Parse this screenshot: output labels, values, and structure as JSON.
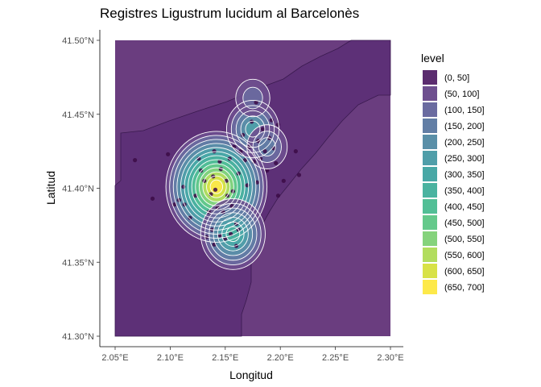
{
  "chart_data": {
    "type": "heatmap",
    "title": "Registres Ligustrum lucidum al Barcelonès",
    "xlabel": "Longitud",
    "ylabel": "Latitud",
    "xlim": [
      2.05,
      2.3
    ],
    "ylim": [
      41.3,
      41.5
    ],
    "x_ticks": [
      {
        "value": 2.05,
        "label": "2.05°E"
      },
      {
        "value": 2.1,
        "label": "2.10°E"
      },
      {
        "value": 2.15,
        "label": "2.15°E"
      },
      {
        "value": 2.2,
        "label": "2.20°E"
      },
      {
        "value": 2.25,
        "label": "2.25°E"
      },
      {
        "value": 2.3,
        "label": "2.30°E"
      }
    ],
    "y_ticks": [
      {
        "value": 41.3,
        "label": "41.30°N"
      },
      {
        "value": 41.35,
        "label": "41.35°N"
      },
      {
        "value": 41.4,
        "label": "41.40°N"
      },
      {
        "value": 41.45,
        "label": "41.45°N"
      },
      {
        "value": 41.5,
        "label": "41.50°N"
      }
    ],
    "legend": {
      "title": "level",
      "placement": "right",
      "levels": [
        {
          "label": "(0, 50]",
          "color": "#5b2c6f"
        },
        {
          "label": "(50, 100]",
          "color": "#6e4f8f"
        },
        {
          "label": "(100, 150]",
          "color": "#6a6ba0"
        },
        {
          "label": "(150, 200]",
          "color": "#627ea5"
        },
        {
          "label": "(200, 250]",
          "color": "#5a8fa8"
        },
        {
          "label": "(250, 300]",
          "color": "#4f9ea9"
        },
        {
          "label": "(300, 350]",
          "color": "#48a8a6"
        },
        {
          "label": "(350, 400]",
          "color": "#4ab3a0"
        },
        {
          "label": "(400, 450]",
          "color": "#52bf96"
        },
        {
          "label": "(450, 500]",
          "color": "#64c98b"
        },
        {
          "label": "(500, 550]",
          "color": "#85d37c"
        },
        {
          "label": "(550, 600]",
          "color": "#b2dd5e"
        },
        {
          "label": "(600, 650]",
          "color": "#d8e246"
        },
        {
          "label": "(650, 700]",
          "color": "#fde94a"
        }
      ]
    },
    "background_color": "#6a3d7f",
    "land_color": "#5d3077",
    "point_color": "#3b0a45",
    "grid": false,
    "points": [
      [
        2.112,
        41.401
      ],
      [
        2.108,
        41.392
      ],
      [
        2.113,
        41.389
      ],
      [
        2.118,
        41.38
      ],
      [
        2.104,
        41.389
      ],
      [
        2.123,
        41.395
      ],
      [
        2.128,
        41.412
      ],
      [
        2.131,
        41.405
      ],
      [
        2.135,
        41.384
      ],
      [
        2.137,
        41.396
      ],
      [
        2.139,
        41.408
      ],
      [
        2.141,
        41.399
      ],
      [
        2.143,
        41.387
      ],
      [
        2.146,
        41.413
      ],
      [
        2.148,
        41.384
      ],
      [
        2.151,
        41.405
      ],
      [
        2.152,
        41.395
      ],
      [
        2.154,
        41.42
      ],
      [
        2.156,
        41.388
      ],
      [
        2.158,
        41.428
      ],
      [
        2.16,
        41.376
      ],
      [
        2.162,
        41.41
      ],
      [
        2.164,
        41.425
      ],
      [
        2.166,
        41.436
      ],
      [
        2.168,
        41.419
      ],
      [
        2.17,
        41.402
      ],
      [
        2.172,
        41.428
      ],
      [
        2.174,
        41.445
      ],
      [
        2.176,
        41.418
      ],
      [
        2.178,
        41.458
      ],
      [
        2.18,
        41.432
      ],
      [
        2.182,
        41.42
      ],
      [
        2.184,
        41.44
      ],
      [
        2.186,
        41.425
      ],
      [
        2.188,
        41.412
      ],
      [
        2.19,
        41.434
      ],
      [
        2.192,
        41.446
      ],
      [
        2.194,
        41.427
      ],
      [
        2.196,
        41.417
      ],
      [
        2.198,
        41.443
      ],
      [
        2.15,
        41.366
      ],
      [
        2.155,
        41.369
      ],
      [
        2.16,
        41.361
      ],
      [
        2.162,
        41.372
      ],
      [
        2.14,
        41.362
      ],
      [
        2.145,
        41.368
      ],
      [
        2.138,
        41.372
      ],
      [
        2.133,
        41.367
      ],
      [
        2.145,
        41.418
      ],
      [
        2.14,
        41.425
      ],
      [
        2.098,
        41.423
      ],
      [
        2.084,
        41.393
      ],
      [
        2.068,
        41.419
      ],
      [
        2.203,
        41.405
      ],
      [
        2.198,
        41.395
      ],
      [
        2.179,
        41.404
      ],
      [
        2.214,
        41.425
      ],
      [
        2.217,
        41.409
      ],
      [
        2.126,
        41.42
      ],
      [
        2.157,
        41.398
      ]
    ],
    "density_peaks": [
      {
        "lon": 2.142,
        "lat": 41.401,
        "label": "(650, 700]"
      },
      {
        "lon": 2.175,
        "lat": 41.44,
        "label": "(250, 300]"
      },
      {
        "lon": 2.157,
        "lat": 41.369,
        "label": "(350, 400]"
      },
      {
        "lon": 2.175,
        "lat": 41.461,
        "label": "(100, 150]"
      },
      {
        "lon": 2.188,
        "lat": 41.428,
        "label": "(150, 200]"
      }
    ]
  }
}
